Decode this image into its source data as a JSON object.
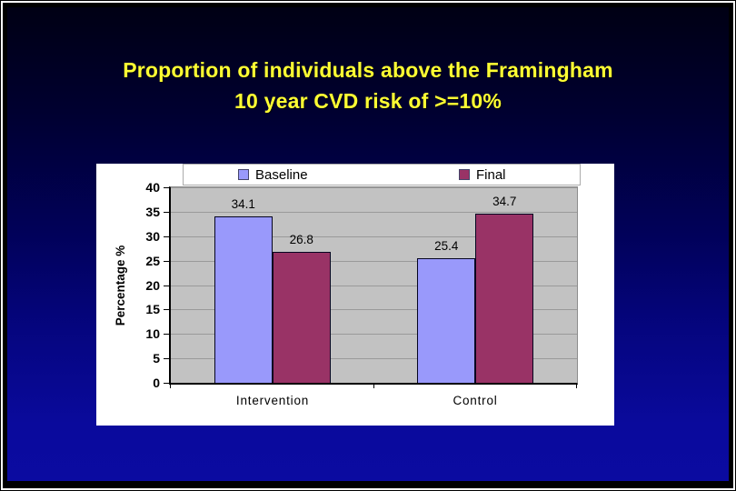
{
  "slide": {
    "title_line1": "Proportion of individuals above the Framingham",
    "title_line2": "10 year CVD risk of >=10%",
    "title_color": "#ffff33"
  },
  "chart_data": {
    "type": "bar",
    "categories": [
      "Intervention",
      "Control"
    ],
    "series": [
      {
        "name": "Baseline",
        "color": "#9999fb",
        "values": [
          34.1,
          25.4
        ]
      },
      {
        "name": "Final",
        "color": "#993366",
        "values": [
          26.8,
          34.7
        ]
      }
    ],
    "data_labels": [
      "34.1",
      "26.8",
      "25.4",
      "34.7"
    ],
    "title": "",
    "xlabel": "",
    "ylabel": "Percentage %",
    "ylim": [
      0,
      40
    ],
    "yticks": [
      0,
      5,
      10,
      15,
      20,
      25,
      30,
      35,
      40
    ],
    "grid": true,
    "legend_position": "top",
    "colors": {
      "plot_bg": "#c2c2c2",
      "gridline": "#9a9a9a",
      "axis": "#000000",
      "bar_border": "#050520",
      "panel_bg": "#ffffff",
      "slide_bg_top": "#000014",
      "slide_bg_bottom": "#0b0ba1",
      "text": "#000000"
    }
  }
}
